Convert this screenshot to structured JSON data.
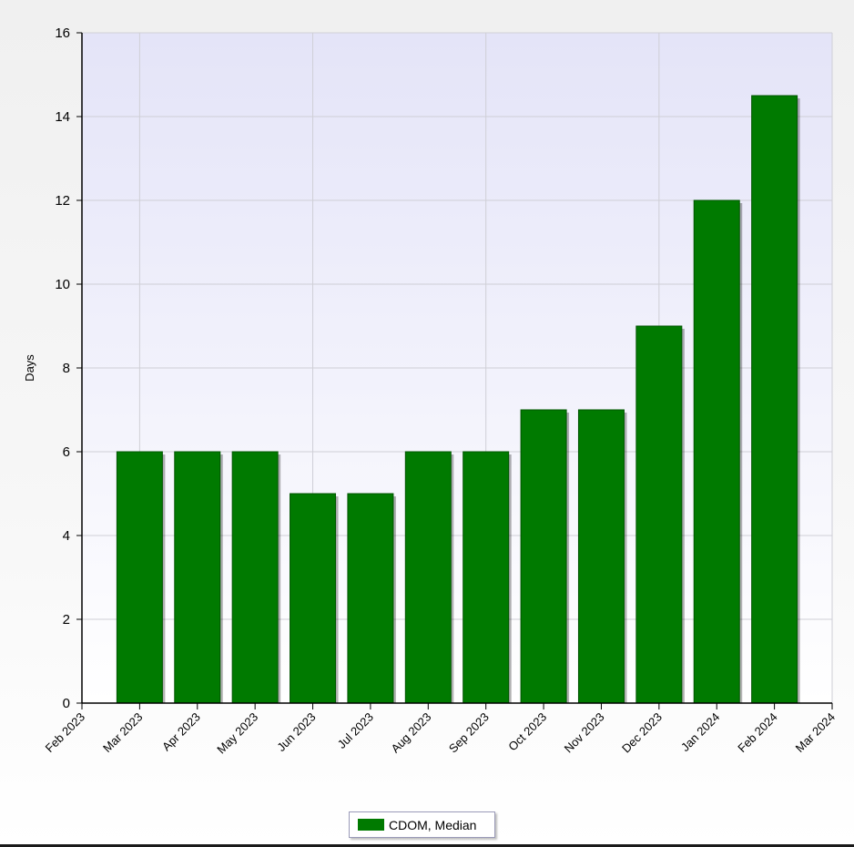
{
  "chart_data": {
    "type": "bar",
    "title": "",
    "xlabel": "",
    "ylabel": "Days",
    "ylim": [
      0,
      16
    ],
    "yticks": [
      0,
      2,
      4,
      6,
      8,
      10,
      12,
      14,
      16
    ],
    "x_tick_labels": [
      "Feb 2023",
      "Mar 2023",
      "Apr 2023",
      "May 2023",
      "Jun 2023",
      "Jul 2023",
      "Aug 2023",
      "Sep 2023",
      "Oct 2023",
      "Nov 2023",
      "Dec 2023",
      "Jan 2024",
      "Feb 2024",
      "Mar 2024"
    ],
    "categories": [
      "Mar 2023",
      "Apr 2023",
      "May 2023",
      "Jun 2023",
      "Jul 2023",
      "Aug 2023",
      "Sep 2023",
      "Oct 2023",
      "Nov 2023",
      "Dec 2023",
      "Jan 2024",
      "Feb 2024"
    ],
    "series": [
      {
        "name": "CDOM, Median",
        "color": "#007a00",
        "values": [
          6,
          6,
          6,
          5,
          5,
          6,
          6,
          7,
          7,
          9,
          12,
          14.5
        ]
      }
    ],
    "grid": true,
    "legend_position": "bottom-center",
    "colors": {
      "plot_background_top": "#e4e4f8",
      "plot_background_bottom": "#ffffff",
      "bar": "#007a00",
      "grid": "#cfcfd6"
    }
  }
}
